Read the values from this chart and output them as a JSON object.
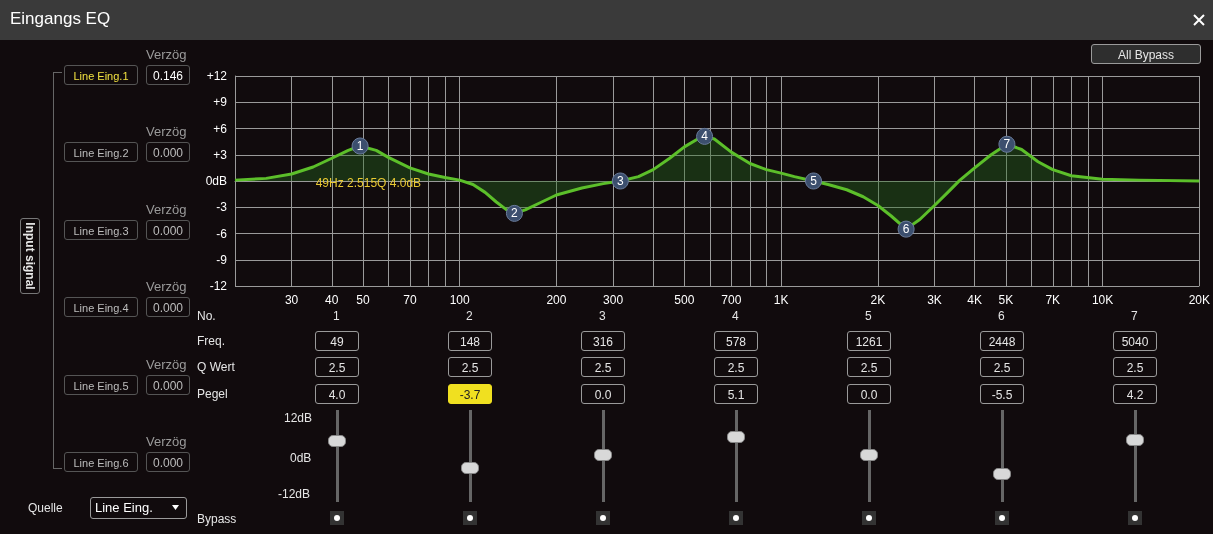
{
  "chart_data": {
    "type": "area",
    "title": "Eingangs EQ",
    "x": [
      20,
      25,
      30,
      35,
      40,
      45,
      49,
      55,
      60,
      70,
      80,
      90,
      100,
      110,
      120,
      130,
      140,
      148,
      160,
      180,
      200,
      240,
      280,
      316,
      360,
      400,
      450,
      500,
      550,
      578,
      620,
      700,
      800,
      900,
      1000,
      1100,
      1261,
      1400,
      1600,
      1800,
      2000,
      2200,
      2448,
      2700,
      3000,
      3300,
      3600,
      4000,
      4500,
      5040,
      5600,
      6300,
      7000,
      8000,
      10000,
      13000,
      20000
    ],
    "series": [
      {
        "color": "#5cbf2a",
        "values": [
          0.1,
          0.3,
          0.8,
          1.6,
          2.6,
          3.5,
          4.0,
          3.5,
          2.7,
          1.5,
          0.8,
          0.4,
          0.1,
          -0.4,
          -1.3,
          -2.4,
          -3.3,
          -3.7,
          -3.3,
          -2.4,
          -1.6,
          -0.8,
          -0.3,
          0,
          0.5,
          1.3,
          2.6,
          3.9,
          4.8,
          5.1,
          4.8,
          3.3,
          2.0,
          1.3,
          0.9,
          0.5,
          0,
          -0.4,
          -1.0,
          -1.8,
          -2.8,
          -4.0,
          -5.5,
          -4.4,
          -2.8,
          -1.3,
          0.1,
          1.5,
          3.0,
          4.2,
          3.6,
          2.2,
          1.3,
          0.6,
          0.2,
          0.1,
          0
        ]
      }
    ],
    "xlim": [
      20,
      20000
    ],
    "ylim": [
      -12,
      12
    ],
    "log": "x",
    "grid": true,
    "xticks": [
      {
        "value": 20,
        "label": null
      },
      30,
      40,
      50,
      {
        "value": 60,
        "label": null
      },
      70,
      {
        "value": 80,
        "label": null
      },
      {
        "value": 90,
        "label": null
      },
      100,
      200,
      300,
      {
        "value": 400,
        "label": null
      },
      500,
      {
        "value": 600,
        "label": null
      },
      700,
      {
        "value": 800,
        "label": null
      },
      {
        "value": 900,
        "label": null
      },
      {
        "value": 1000,
        "label": "1K"
      },
      {
        "value": 2000,
        "label": "2K"
      },
      {
        "value": 3000,
        "label": "3K"
      },
      {
        "value": 4000,
        "label": "4K"
      },
      {
        "value": 5000,
        "label": "5K"
      },
      {
        "value": 6000,
        "label": null
      },
      {
        "value": 7000,
        "label": "7K"
      },
      {
        "value": 8000,
        "label": null
      },
      {
        "value": 9000,
        "label": null
      },
      {
        "value": 10000,
        "label": "10K"
      },
      {
        "value": 20000,
        "label": "20K"
      }
    ],
    "yticks": [
      {
        "value": 12,
        "label": "+12"
      },
      {
        "value": 9,
        "label": "+9"
      },
      {
        "value": 6,
        "label": "+6"
      },
      {
        "value": 3,
        "label": "+3"
      },
      {
        "value": 0,
        "label": "0dB"
      },
      -3,
      -6,
      -9,
      -12
    ],
    "annotations": [
      "All Bypass",
      "Input signal",
      "Line Eing.1",
      "Line Eing.2",
      "Line Eing.3",
      "Line Eing.4",
      "Line Eing.5",
      "Line Eing.6",
      "Verzög",
      "Verzög",
      "Verzög",
      "Verzög",
      "Verzög",
      "Verzög",
      "0.146",
      "0.000",
      "0.000",
      "0.000",
      "0.000",
      "0.000",
      "Quelle",
      "Line Eing.",
      "No.",
      "Freq.",
      "Q Wert",
      "Pegel",
      "12dB",
      "0dB",
      "-12dB",
      "Bypass",
      "49",
      "148",
      "316",
      "578",
      "1261",
      "2448",
      "5040",
      "2.5",
      "2.5",
      "2.5",
      "2.5",
      "2.5",
      "2.5",
      "2.5",
      "4.0",
      "-3.7",
      "0.0",
      "5.1",
      "0.0",
      "-5.5",
      "4.2",
      {
        "text": "1",
        "x": 49,
        "y": 4.0
      },
      {
        "text": "2",
        "x": 148,
        "y": -3.7
      },
      {
        "text": "3",
        "x": 316,
        "y": 0.0
      },
      {
        "text": "4",
        "x": 578,
        "y": 5.1
      },
      {
        "text": "5",
        "x": 1261,
        "y": 0.0
      },
      {
        "text": "6",
        "x": 2448,
        "y": -5.5
      },
      {
        "text": "7",
        "x": 5040,
        "y": 4.2
      },
      {
        "text": "49Hz 2.515Q 4.0dB",
        "x": 52,
        "y": -0.2
      }
    ]
  }
}
